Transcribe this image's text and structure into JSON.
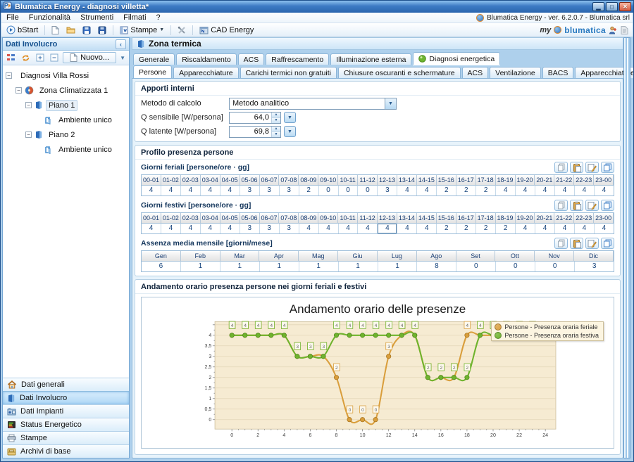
{
  "window": {
    "title": "Blumatica Energy - diagnosi villetta*",
    "version_badge": "Blumatica Energy - ver. 6.2.0.7 - Blumatica srl",
    "menu_items": [
      "File",
      "Funzionalità",
      "Strumenti",
      "Filmati",
      "?"
    ]
  },
  "toolbar": {
    "bstart_label": "bStart",
    "stampe_label": "Stampe",
    "cad_label": "CAD Energy",
    "brand_my": "my",
    "brand_name": "blumatica"
  },
  "sidebar": {
    "title": "Dati Involucro",
    "nuovo_label": "Nuovo...",
    "tree": [
      {
        "label": "Diagnosi Villa Rossi",
        "level": 0,
        "icon": "diagnosi",
        "expander": "minus",
        "selected": false
      },
      {
        "label": "Zona Climatizzata 1",
        "level": 1,
        "icon": "zona",
        "expander": "minus",
        "selected": false
      },
      {
        "label": "Piano 1",
        "level": 2,
        "icon": "piano",
        "expander": "minus",
        "selected": true
      },
      {
        "label": "Ambiente unico",
        "level": 3,
        "icon": "ambiente",
        "expander": "none",
        "selected": false
      },
      {
        "label": "Piano 2",
        "level": 2,
        "icon": "piano",
        "expander": "minus",
        "selected": false
      },
      {
        "label": "Ambiente unico",
        "level": 3,
        "icon": "ambiente",
        "expander": "none",
        "selected": false
      }
    ],
    "nav_items": [
      {
        "label": "Dati generali",
        "icon": "house",
        "active": false
      },
      {
        "label": "Dati Involucro",
        "icon": "piano",
        "active": true
      },
      {
        "label": "Dati Impianti",
        "icon": "impianti",
        "active": false
      },
      {
        "label": "Status Energetico",
        "icon": "status",
        "active": false
      },
      {
        "label": "Stampe",
        "icon": "printer",
        "active": false
      },
      {
        "label": "Archivi di base",
        "icon": "archivi",
        "active": false
      }
    ]
  },
  "main": {
    "page_title": "Zona termica",
    "tabs_level1": [
      {
        "label": "Generale",
        "active": false,
        "icon": ""
      },
      {
        "label": "Riscaldamento",
        "active": false,
        "icon": ""
      },
      {
        "label": "ACS",
        "active": false,
        "icon": ""
      },
      {
        "label": "Raffrescamento",
        "active": false,
        "icon": ""
      },
      {
        "label": "Illuminazione esterna",
        "active": false,
        "icon": ""
      },
      {
        "label": "Diagnosi energetica",
        "active": true,
        "icon": "greenball"
      }
    ],
    "tabs_level2": [
      {
        "label": "Persone",
        "active": true
      },
      {
        "label": "Apparecchiature",
        "active": false
      },
      {
        "label": "Carichi termici non gratuiti",
        "active": false
      },
      {
        "label": "Chiusure oscuranti e schermature",
        "active": false
      },
      {
        "label": "ACS",
        "active": false
      },
      {
        "label": "Ventilazione",
        "active": false
      },
      {
        "label": "BACS",
        "active": false
      },
      {
        "label": "Apparecchiature elettriche",
        "active": false
      },
      {
        "label": "Impianti",
        "active": false
      }
    ],
    "apporti": {
      "title": "Apporti interni",
      "metodo_label": "Metodo di calcolo",
      "metodo_value": "Metodo analitico",
      "qsens_label": "Q sensibile [W/persona]",
      "qsens_value": "64,0",
      "qlat_label": "Q latente  [W/persona]",
      "qlat_value": "69,8"
    },
    "profilo": {
      "title": "Profilo presenza persone",
      "hours": [
        "00-01",
        "01-02",
        "02-03",
        "03-04",
        "04-05",
        "05-06",
        "06-07",
        "07-08",
        "08-09",
        "09-10",
        "10-11",
        "11-12",
        "12-13",
        "13-14",
        "14-15",
        "15-16",
        "16-17",
        "17-18",
        "18-19",
        "19-20",
        "20-21",
        "21-22",
        "22-23",
        "23-00"
      ],
      "feriali": {
        "label": "Giorni feriali [persone/ore · gg]",
        "values": [
          4,
          4,
          4,
          4,
          4,
          3,
          3,
          3,
          2,
          0,
          0,
          0,
          3,
          4,
          4,
          2,
          2,
          2,
          4,
          4,
          4,
          4,
          4,
          4
        ]
      },
      "festivi": {
        "label": "Giorni festivi [persone/ore · gg]",
        "values": [
          4,
          4,
          4,
          4,
          4,
          3,
          3,
          3,
          4,
          4,
          4,
          4,
          4,
          4,
          4,
          2,
          2,
          2,
          2,
          4,
          4,
          4,
          4,
          4
        ],
        "selected_col": 12
      },
      "assenza": {
        "label": "Assenza media mensile [giorni/mese]",
        "months": [
          "Gen",
          "Feb",
          "Mar",
          "Apr",
          "Mag",
          "Giu",
          "Lug",
          "Ago",
          "Set",
          "Ott",
          "Nov",
          "Dic"
        ],
        "values": [
          6,
          1,
          1,
          1,
          1,
          1,
          1,
          8,
          0,
          0,
          0,
          3
        ]
      }
    },
    "chart_section": {
      "title": "Andamento orario presenza persone nei giorni feriali e festivi"
    }
  },
  "chart_data": {
    "type": "line",
    "title": "Andamento orario delle presenze",
    "x": [
      0,
      1,
      2,
      3,
      4,
      5,
      6,
      7,
      8,
      9,
      10,
      11,
      12,
      13,
      14,
      15,
      16,
      17,
      18,
      19,
      20,
      21,
      22,
      23
    ],
    "series": [
      {
        "name": "Persone - Presenza oraria feriale",
        "color": "#D99E3C",
        "color_dark": "#A8751F",
        "values": [
          4,
          4,
          4,
          4,
          4,
          3,
          3,
          3,
          2,
          0,
          0,
          0,
          3,
          4,
          4,
          2,
          2,
          2,
          4,
          4,
          4,
          4,
          4,
          4
        ]
      },
      {
        "name": "Persone - Presenza oraria festiva",
        "color": "#6FB32D",
        "color_dark": "#4E8A1D",
        "values": [
          4,
          4,
          4,
          4,
          4,
          3,
          3,
          3,
          4,
          4,
          4,
          4,
          4,
          4,
          4,
          2,
          2,
          2,
          2,
          4,
          4,
          4,
          4,
          4
        ]
      }
    ],
    "xticks": [
      0,
      2,
      4,
      6,
      8,
      10,
      12,
      14,
      16,
      18,
      20,
      22,
      24
    ],
    "yticks": [
      0,
      0.5,
      1,
      1.5,
      2,
      2.5,
      3,
      3.5,
      4
    ],
    "ytick_labels": [
      "0",
      "0,5",
      "1",
      "1,5",
      "2",
      "2,5",
      "3",
      "3,5",
      "4"
    ],
    "xlim": [
      -1.3,
      24.8
    ],
    "ylim": [
      -0.45,
      4.65
    ],
    "plot_bg": "#F6EBD2",
    "grid_color": "#E3D5B8",
    "grid": true,
    "legend_position": "top-right",
    "data_labels": true
  }
}
